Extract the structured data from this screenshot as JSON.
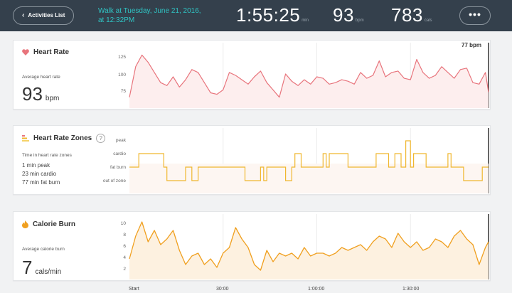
{
  "topbar": {
    "back_label": "Activities List",
    "title_line1": "Walk at Tuesday, June 21, 2016,",
    "title_line2": "at 12:32PM",
    "duration": "1:55:25",
    "duration_unit": "min",
    "heart_rate": "93",
    "heart_rate_unit": "bpm",
    "calories": "783",
    "calories_unit": "cals",
    "more_label": "•••"
  },
  "heart_rate_card": {
    "title": "Heart Rate",
    "avg_label": "Average heart rate",
    "avg_value": "93",
    "avg_unit": "bpm",
    "current_label": "77 bpm",
    "y_ticks": [
      "125",
      "100",
      "75"
    ],
    "color": "#e8747c"
  },
  "zones_card": {
    "title": "Heart Rate Zones",
    "help": "?",
    "time_label": "Time in heart rate zones",
    "lines": [
      "1 min peak",
      "23 min cardio",
      "77 min fat burn"
    ],
    "zones": [
      "peak",
      "cardio",
      "fat burn",
      "out of zone"
    ],
    "color": "#f0b72f"
  },
  "calorie_card": {
    "title": "Calorie Burn",
    "avg_label": "Average calorie burn",
    "avg_value": "7",
    "avg_unit": "cals/min",
    "y_ticks": [
      "10",
      "8",
      "6",
      "4",
      "2"
    ],
    "color": "#f0a020"
  },
  "time_axis": [
    "Start",
    "30:00",
    "1:00:00",
    "1:30:00"
  ],
  "chart_data": [
    {
      "type": "area",
      "title": "Heart Rate",
      "ylabel": "bpm",
      "ylim": [
        55,
        145
      ],
      "x_minutes": [
        0,
        2,
        4,
        6,
        8,
        10,
        12,
        14,
        16,
        18,
        20,
        22,
        24,
        26,
        28,
        30,
        32,
        34,
        36,
        38,
        40,
        42,
        44,
        46,
        48,
        50,
        52,
        54,
        56,
        58,
        60,
        62,
        64,
        66,
        68,
        70,
        72,
        74,
        76,
        78,
        80,
        82,
        84,
        86,
        88,
        90,
        92,
        94,
        96,
        98,
        100,
        102,
        104,
        106,
        108,
        110,
        112,
        114,
        115
      ],
      "values": [
        70,
        112,
        128,
        118,
        104,
        90,
        86,
        98,
        84,
        94,
        108,
        104,
        90,
        76,
        74,
        80,
        104,
        100,
        94,
        88,
        98,
        106,
        90,
        80,
        70,
        102,
        92,
        86,
        94,
        88,
        98,
        96,
        88,
        90,
        94,
        92,
        88,
        104,
        96,
        100,
        120,
        98,
        104,
        106,
        96,
        94,
        122,
        104,
        96,
        100,
        112,
        104,
        96,
        108,
        110,
        90,
        88,
        104,
        77
      ]
    },
    {
      "type": "line",
      "title": "Heart Rate Zones",
      "categories": [
        "out of zone",
        "fat burn",
        "cardio",
        "peak"
      ],
      "x_minutes": [
        0,
        3,
        10,
        11,
        12,
        16,
        18,
        20,
        22,
        36,
        37,
        41,
        42,
        43,
        44,
        50,
        52,
        53,
        55,
        57,
        62,
        63,
        64,
        69,
        70,
        78,
        79,
        82,
        83,
        84,
        85,
        87,
        88,
        88.5,
        90,
        91,
        94,
        95,
        102,
        103,
        106,
        107,
        112,
        113,
        115
      ],
      "values_zone_index": [
        1,
        2,
        2,
        1,
        0,
        0,
        1,
        0,
        1,
        1,
        0,
        0,
        1,
        0,
        1,
        0,
        1,
        2,
        1,
        1,
        2,
        1,
        2,
        2,
        1,
        1,
        2,
        2,
        1,
        1,
        2,
        1,
        1,
        3,
        1,
        2,
        2,
        1,
        2,
        1,
        1,
        0,
        0,
        1,
        1
      ]
    },
    {
      "type": "area",
      "title": "Calorie Burn",
      "ylabel": "cals/min",
      "ylim": [
        1,
        11
      ],
      "x_minutes": [
        0,
        2,
        4,
        6,
        8,
        10,
        12,
        14,
        16,
        18,
        20,
        22,
        24,
        26,
        28,
        30,
        32,
        34,
        36,
        38,
        40,
        42,
        44,
        46,
        48,
        50,
        52,
        54,
        56,
        58,
        60,
        62,
        64,
        66,
        68,
        70,
        72,
        74,
        76,
        78,
        80,
        82,
        84,
        86,
        88,
        90,
        92,
        94,
        96,
        98,
        100,
        102,
        104,
        106,
        108,
        110,
        112,
        114,
        115
      ],
      "values": [
        4,
        8,
        10.5,
        7,
        9,
        6.5,
        7.5,
        9,
        5.5,
        3,
        4.5,
        5,
        3,
        4,
        2.5,
        5,
        6,
        9.5,
        7.5,
        6,
        3,
        2,
        5.5,
        3.5,
        5,
        4.5,
        5,
        4,
        6,
        4.5,
        5,
        5,
        4.5,
        5,
        6,
        5.5,
        6,
        6.5,
        5.5,
        7,
        8,
        7.5,
        6,
        8.5,
        7,
        6,
        7,
        5.5,
        6,
        7.5,
        7,
        6,
        8,
        9,
        7.5,
        6.5,
        3,
        6,
        7
      ]
    }
  ]
}
